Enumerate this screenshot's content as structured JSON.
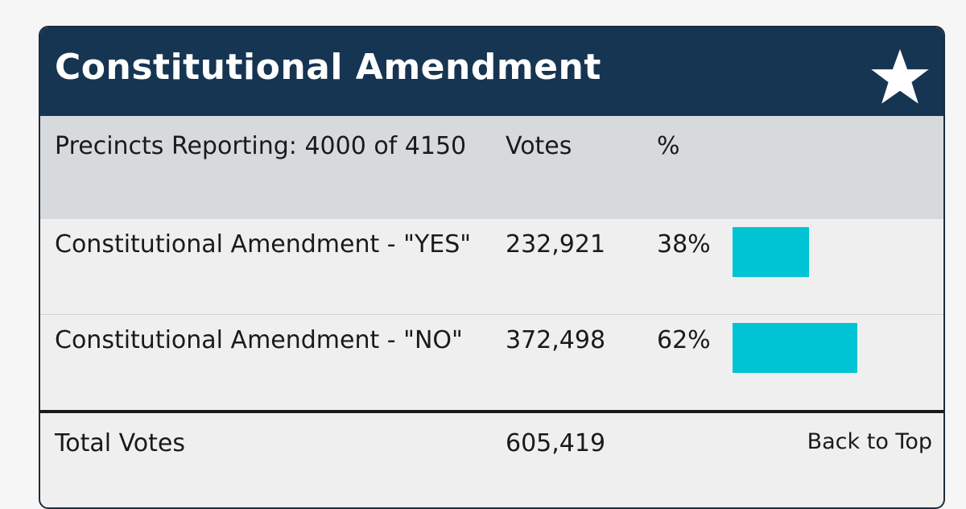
{
  "card": {
    "title": "Constitutional Amendment",
    "icon": "star-icon"
  },
  "table": {
    "header": {
      "precincts": "Precincts Reporting: 4000 of 4150",
      "votes": "Votes",
      "percent": "%"
    },
    "rows": [
      {
        "name": "Constitutional Amendment - \"YES\"",
        "votes": "232,921",
        "percent": "38%",
        "share": 0.38
      },
      {
        "name": "Constitutional Amendment - \"NO\"",
        "votes": "372,498",
        "percent": "62%",
        "share": 0.62
      }
    ],
    "footer": {
      "label": "Total Votes",
      "votes": "605,419",
      "back_to_top": "Back to Top"
    }
  },
  "colors": {
    "header_bg": "#163552",
    "bar": "#00c4d4",
    "thead_bg": "#d7dadd"
  }
}
